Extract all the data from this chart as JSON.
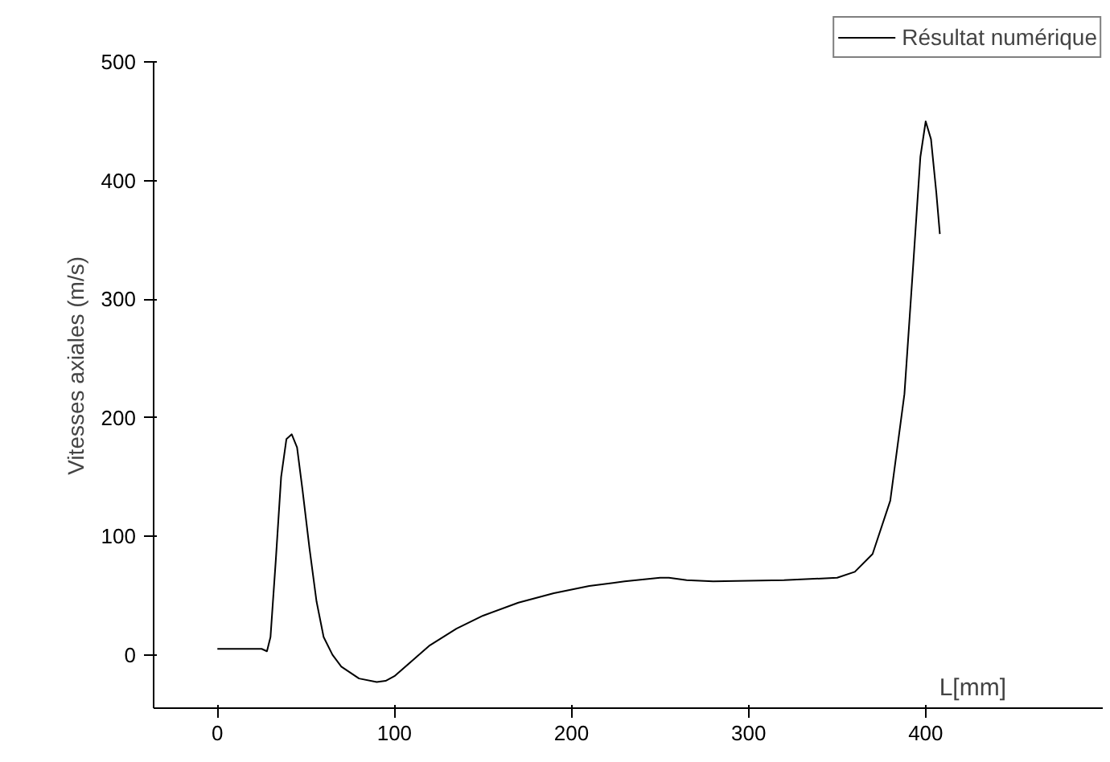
{
  "chart_data": {
    "type": "line",
    "xlabel": "L[mm]",
    "ylabel": "Vitesses axiales  (m/s)",
    "xlim": [
      -36,
      500
    ],
    "ylim": [
      -45,
      500
    ],
    "xticks": [
      0,
      100,
      200,
      300,
      400
    ],
    "yticks": [
      0,
      100,
      200,
      300,
      400,
      500
    ],
    "grid": false,
    "legend": "top right",
    "marker": "none",
    "line_style": "solid",
    "series": [
      {
        "name": "Résultat numérique",
        "color": "#000000",
        "x": [
          0,
          25,
          28,
          30,
          33,
          36,
          39,
          42,
          45,
          48,
          52,
          56,
          60,
          65,
          70,
          80,
          90,
          95,
          100,
          110,
          120,
          135,
          150,
          170,
          190,
          210,
          230,
          250,
          255,
          265,
          280,
          320,
          350,
          360,
          370,
          380,
          388,
          393,
          397,
          400,
          403,
          406,
          408
        ],
        "values": [
          5,
          5,
          3,
          15,
          80,
          150,
          182,
          186,
          175,
          140,
          90,
          45,
          15,
          0,
          -10,
          -20,
          -23,
          -22,
          -18,
          -5,
          8,
          22,
          33,
          44,
          52,
          58,
          62,
          65,
          65,
          63,
          62,
          63,
          65,
          70,
          85,
          130,
          220,
          330,
          420,
          450,
          435,
          390,
          355
        ]
      }
    ]
  }
}
